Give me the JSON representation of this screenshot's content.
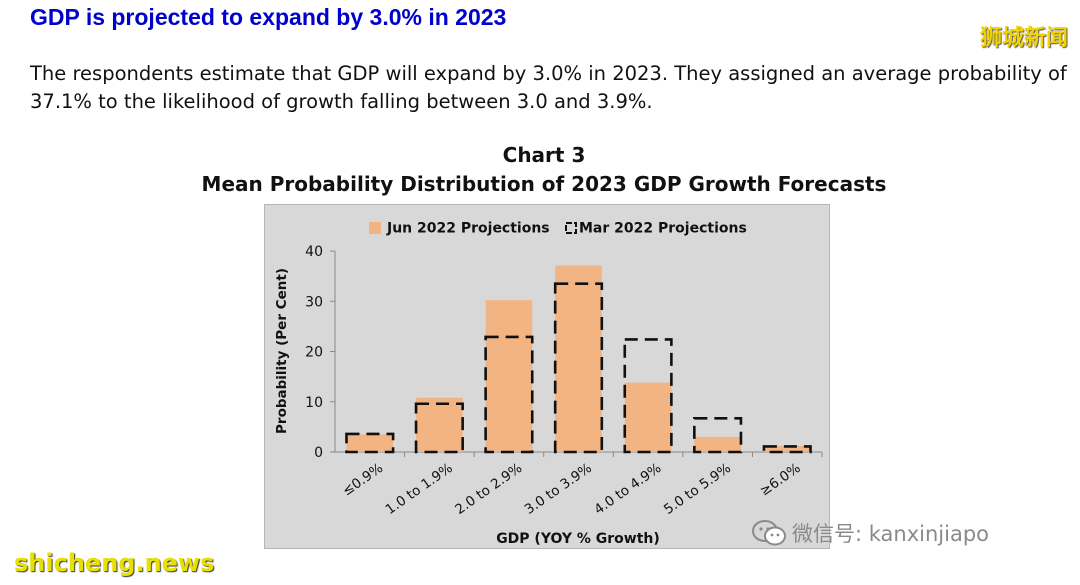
{
  "headline": "GDP is projected to expand by 3.0% in 2023",
  "intro": "The respondents estimate that GDP will expand by 3.0% in 2023. They assigned an average probability of 37.1% to the likelihood of growth falling between 3.0 and 3.9%.",
  "watermark_cn": "狮城新闻",
  "watermark_site": "shicheng.news",
  "watermark_wechat": "微信号: kanxinjiapo",
  "chart_heading": {
    "number": "Chart 3",
    "title": "Mean Probability Distribution of 2023 GDP Growth Forecasts"
  },
  "colors": {
    "jun_bar": "#f2b482",
    "mar_outline": "#111111",
    "plot_bg": "#d8d8d8"
  },
  "chart_data": {
    "type": "bar",
    "title": "Mean Probability Distribution of 2023 GDP Growth Forecasts",
    "xlabel": "GDP (YOY % Growth)",
    "ylabel": "Probability (Per Cent)",
    "ylim": [
      0,
      40
    ],
    "yticks": [
      0,
      10,
      20,
      30,
      40
    ],
    "categories": [
      "≤0.9%",
      "1.0 to 1.9%",
      "2.0 to 2.9%",
      "3.0 to 3.9%",
      "4.0 to 4.9%",
      "5.0 to 5.9%",
      "≥6.0%"
    ],
    "series": [
      {
        "name": "Jun 2022 Projections",
        "style": "filled",
        "values": [
          3.5,
          10.8,
          30.2,
          37.1,
          13.8,
          3.0,
          1.2
        ]
      },
      {
        "name": "Mar 2022 Projections",
        "style": "dashed-outline",
        "values": [
          3.6,
          9.6,
          22.9,
          33.5,
          22.4,
          6.7,
          1.1
        ]
      }
    ],
    "legend_position": "top",
    "grid": false
  }
}
